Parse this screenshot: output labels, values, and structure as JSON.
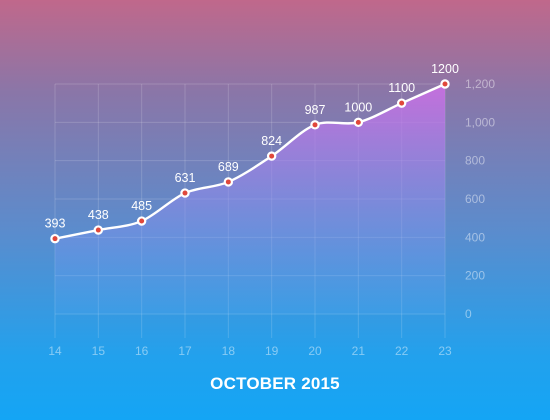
{
  "chart_data": {
    "type": "area",
    "title": "OCTOBER 2015",
    "categories": [
      "14",
      "15",
      "16",
      "17",
      "18",
      "19",
      "20",
      "21",
      "22",
      "23"
    ],
    "values": [
      393,
      438,
      485,
      631,
      689,
      824,
      987,
      1000,
      1100,
      1200
    ],
    "data_labels": [
      "393",
      "438",
      "485",
      "631",
      "689",
      "824",
      "987",
      "1000",
      "1100",
      "1200"
    ],
    "ylim": [
      0,
      1200
    ],
    "yticks": [
      0,
      200,
      400,
      600,
      800,
      1000,
      1200
    ],
    "ytick_labels": [
      "0",
      "200",
      "400",
      "600",
      "800",
      "1,000",
      "1,200"
    ],
    "y_axis_side": "right",
    "grid": true,
    "legend": "none"
  },
  "colors": {
    "line": "#ffffff",
    "area_top": "#cf6ee6",
    "area_bottom": "#58a8f5",
    "point_center": "#e0483b"
  }
}
